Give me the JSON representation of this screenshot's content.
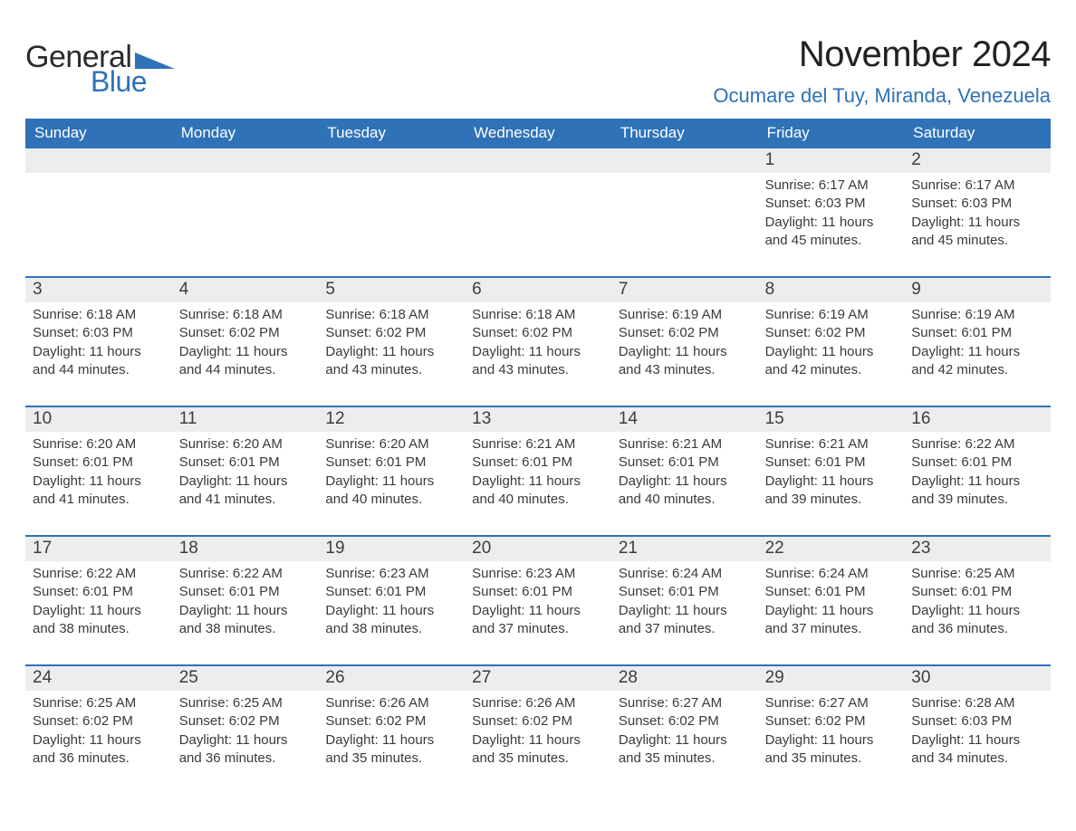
{
  "brand": {
    "word1": "General",
    "word2": "Blue",
    "mark_color": "#2f72b7"
  },
  "title": "November 2024",
  "location": "Ocumare del Tuy, Miranda, Venezuela",
  "colors": {
    "header_blue": "#2f72b7",
    "row_grey": "#eceded",
    "rule": "#2f72b7",
    "text": "#2b2b2b"
  },
  "weekdays": [
    "Sunday",
    "Monday",
    "Tuesday",
    "Wednesday",
    "Thursday",
    "Friday",
    "Saturday"
  ],
  "weeks": [
    {
      "days": [
        {
          "num": "",
          "sunrise": "",
          "sunset": "",
          "daylight1": "",
          "daylight2": ""
        },
        {
          "num": "",
          "sunrise": "",
          "sunset": "",
          "daylight1": "",
          "daylight2": ""
        },
        {
          "num": "",
          "sunrise": "",
          "sunset": "",
          "daylight1": "",
          "daylight2": ""
        },
        {
          "num": "",
          "sunrise": "",
          "sunset": "",
          "daylight1": "",
          "daylight2": ""
        },
        {
          "num": "",
          "sunrise": "",
          "sunset": "",
          "daylight1": "",
          "daylight2": ""
        },
        {
          "num": "1",
          "sunrise": "Sunrise: 6:17 AM",
          "sunset": "Sunset: 6:03 PM",
          "daylight1": "Daylight: 11 hours",
          "daylight2": "and 45 minutes."
        },
        {
          "num": "2",
          "sunrise": "Sunrise: 6:17 AM",
          "sunset": "Sunset: 6:03 PM",
          "daylight1": "Daylight: 11 hours",
          "daylight2": "and 45 minutes."
        }
      ]
    },
    {
      "days": [
        {
          "num": "3",
          "sunrise": "Sunrise: 6:18 AM",
          "sunset": "Sunset: 6:03 PM",
          "daylight1": "Daylight: 11 hours",
          "daylight2": "and 44 minutes."
        },
        {
          "num": "4",
          "sunrise": "Sunrise: 6:18 AM",
          "sunset": "Sunset: 6:02 PM",
          "daylight1": "Daylight: 11 hours",
          "daylight2": "and 44 minutes."
        },
        {
          "num": "5",
          "sunrise": "Sunrise: 6:18 AM",
          "sunset": "Sunset: 6:02 PM",
          "daylight1": "Daylight: 11 hours",
          "daylight2": "and 43 minutes."
        },
        {
          "num": "6",
          "sunrise": "Sunrise: 6:18 AM",
          "sunset": "Sunset: 6:02 PM",
          "daylight1": "Daylight: 11 hours",
          "daylight2": "and 43 minutes."
        },
        {
          "num": "7",
          "sunrise": "Sunrise: 6:19 AM",
          "sunset": "Sunset: 6:02 PM",
          "daylight1": "Daylight: 11 hours",
          "daylight2": "and 43 minutes."
        },
        {
          "num": "8",
          "sunrise": "Sunrise: 6:19 AM",
          "sunset": "Sunset: 6:02 PM",
          "daylight1": "Daylight: 11 hours",
          "daylight2": "and 42 minutes."
        },
        {
          "num": "9",
          "sunrise": "Sunrise: 6:19 AM",
          "sunset": "Sunset: 6:01 PM",
          "daylight1": "Daylight: 11 hours",
          "daylight2": "and 42 minutes."
        }
      ]
    },
    {
      "days": [
        {
          "num": "10",
          "sunrise": "Sunrise: 6:20 AM",
          "sunset": "Sunset: 6:01 PM",
          "daylight1": "Daylight: 11 hours",
          "daylight2": "and 41 minutes."
        },
        {
          "num": "11",
          "sunrise": "Sunrise: 6:20 AM",
          "sunset": "Sunset: 6:01 PM",
          "daylight1": "Daylight: 11 hours",
          "daylight2": "and 41 minutes."
        },
        {
          "num": "12",
          "sunrise": "Sunrise: 6:20 AM",
          "sunset": "Sunset: 6:01 PM",
          "daylight1": "Daylight: 11 hours",
          "daylight2": "and 40 minutes."
        },
        {
          "num": "13",
          "sunrise": "Sunrise: 6:21 AM",
          "sunset": "Sunset: 6:01 PM",
          "daylight1": "Daylight: 11 hours",
          "daylight2": "and 40 minutes."
        },
        {
          "num": "14",
          "sunrise": "Sunrise: 6:21 AM",
          "sunset": "Sunset: 6:01 PM",
          "daylight1": "Daylight: 11 hours",
          "daylight2": "and 40 minutes."
        },
        {
          "num": "15",
          "sunrise": "Sunrise: 6:21 AM",
          "sunset": "Sunset: 6:01 PM",
          "daylight1": "Daylight: 11 hours",
          "daylight2": "and 39 minutes."
        },
        {
          "num": "16",
          "sunrise": "Sunrise: 6:22 AM",
          "sunset": "Sunset: 6:01 PM",
          "daylight1": "Daylight: 11 hours",
          "daylight2": "and 39 minutes."
        }
      ]
    },
    {
      "days": [
        {
          "num": "17",
          "sunrise": "Sunrise: 6:22 AM",
          "sunset": "Sunset: 6:01 PM",
          "daylight1": "Daylight: 11 hours",
          "daylight2": "and 38 minutes."
        },
        {
          "num": "18",
          "sunrise": "Sunrise: 6:22 AM",
          "sunset": "Sunset: 6:01 PM",
          "daylight1": "Daylight: 11 hours",
          "daylight2": "and 38 minutes."
        },
        {
          "num": "19",
          "sunrise": "Sunrise: 6:23 AM",
          "sunset": "Sunset: 6:01 PM",
          "daylight1": "Daylight: 11 hours",
          "daylight2": "and 38 minutes."
        },
        {
          "num": "20",
          "sunrise": "Sunrise: 6:23 AM",
          "sunset": "Sunset: 6:01 PM",
          "daylight1": "Daylight: 11 hours",
          "daylight2": "and 37 minutes."
        },
        {
          "num": "21",
          "sunrise": "Sunrise: 6:24 AM",
          "sunset": "Sunset: 6:01 PM",
          "daylight1": "Daylight: 11 hours",
          "daylight2": "and 37 minutes."
        },
        {
          "num": "22",
          "sunrise": "Sunrise: 6:24 AM",
          "sunset": "Sunset: 6:01 PM",
          "daylight1": "Daylight: 11 hours",
          "daylight2": "and 37 minutes."
        },
        {
          "num": "23",
          "sunrise": "Sunrise: 6:25 AM",
          "sunset": "Sunset: 6:01 PM",
          "daylight1": "Daylight: 11 hours",
          "daylight2": "and 36 minutes."
        }
      ]
    },
    {
      "days": [
        {
          "num": "24",
          "sunrise": "Sunrise: 6:25 AM",
          "sunset": "Sunset: 6:02 PM",
          "daylight1": "Daylight: 11 hours",
          "daylight2": "and 36 minutes."
        },
        {
          "num": "25",
          "sunrise": "Sunrise: 6:25 AM",
          "sunset": "Sunset: 6:02 PM",
          "daylight1": "Daylight: 11 hours",
          "daylight2": "and 36 minutes."
        },
        {
          "num": "26",
          "sunrise": "Sunrise: 6:26 AM",
          "sunset": "Sunset: 6:02 PM",
          "daylight1": "Daylight: 11 hours",
          "daylight2": "and 35 minutes."
        },
        {
          "num": "27",
          "sunrise": "Sunrise: 6:26 AM",
          "sunset": "Sunset: 6:02 PM",
          "daylight1": "Daylight: 11 hours",
          "daylight2": "and 35 minutes."
        },
        {
          "num": "28",
          "sunrise": "Sunrise: 6:27 AM",
          "sunset": "Sunset: 6:02 PM",
          "daylight1": "Daylight: 11 hours",
          "daylight2": "and 35 minutes."
        },
        {
          "num": "29",
          "sunrise": "Sunrise: 6:27 AM",
          "sunset": "Sunset: 6:02 PM",
          "daylight1": "Daylight: 11 hours",
          "daylight2": "and 35 minutes."
        },
        {
          "num": "30",
          "sunrise": "Sunrise: 6:28 AM",
          "sunset": "Sunset: 6:03 PM",
          "daylight1": "Daylight: 11 hours",
          "daylight2": "and 34 minutes."
        }
      ]
    }
  ]
}
